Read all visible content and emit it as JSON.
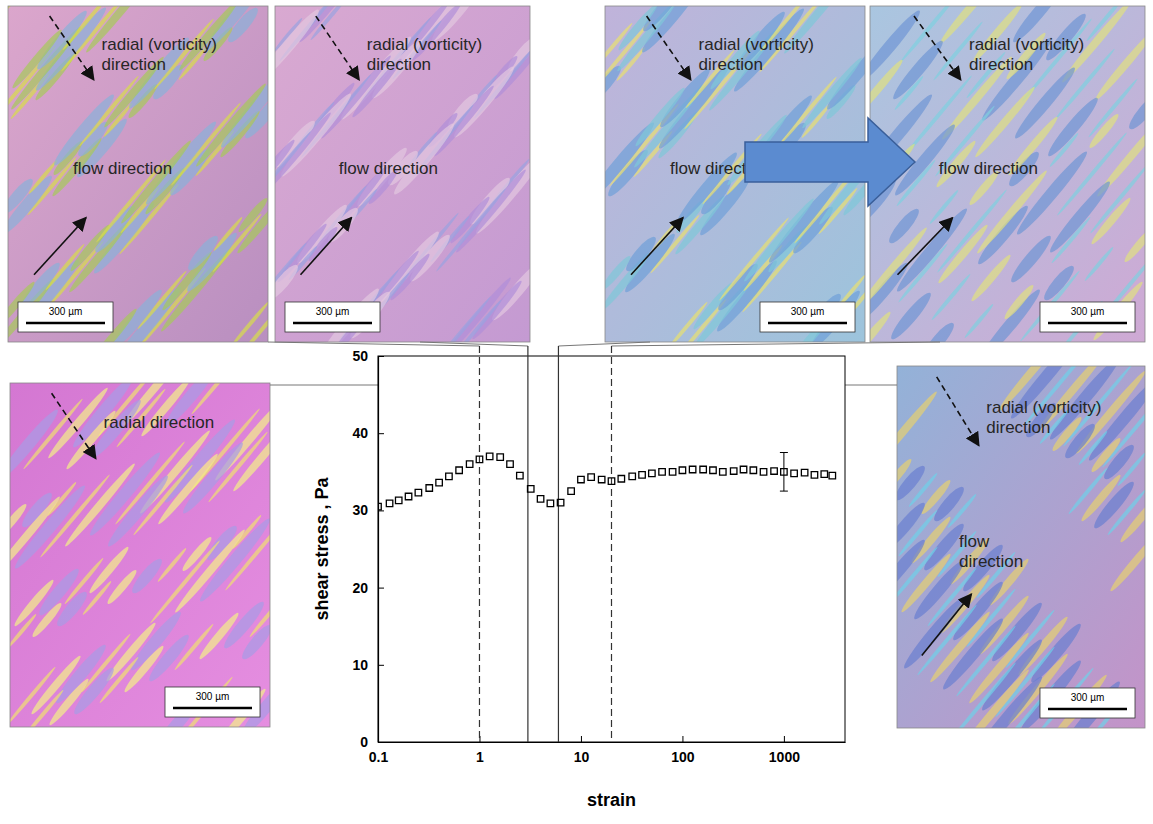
{
  "chart_data": {
    "type": "scatter",
    "x_label": "strain",
    "y_label": "shear stress , Pa",
    "log": "x",
    "xlim": [
      0.1,
      4000
    ],
    "xticks": [
      0.1,
      1,
      10,
      100,
      1000
    ],
    "ylim": [
      0,
      50
    ],
    "yticks": [
      0,
      10,
      20,
      30,
      40,
      50
    ],
    "x": [
      0.1,
      0.13,
      0.16,
      0.2,
      0.25,
      0.32,
      0.4,
      0.5,
      0.63,
      0.8,
      1,
      1.26,
      1.6,
      2,
      2.5,
      3.2,
      4,
      5,
      6.3,
      8,
      10,
      12.6,
      16,
      20,
      25,
      32,
      40,
      50,
      63,
      80,
      100,
      126,
      160,
      200,
      250,
      320,
      400,
      500,
      630,
      800,
      1000,
      1260,
      1600,
      2000,
      2500,
      3000
    ],
    "series": [
      {
        "marker": "square",
        "color": "#000000",
        "values": [
          30.5,
          30.9,
          31.3,
          31.8,
          32.3,
          32.9,
          33.6,
          34.4,
          35.2,
          36.0,
          36.6,
          37.0,
          36.9,
          36.0,
          34.5,
          32.8,
          31.5,
          30.9,
          31.0,
          32.5,
          34.0,
          34.3,
          34.0,
          33.8,
          34.1,
          34.4,
          34.6,
          34.8,
          35.0,
          35.0,
          35.2,
          35.3,
          35.3,
          35.2,
          35.0,
          35.1,
          35.3,
          35.2,
          35.0,
          35.1,
          35.0,
          34.8,
          34.9,
          34.6,
          34.7,
          34.5
        ]
      }
    ],
    "error_bars": [
      {
        "x": 1000,
        "y": 35,
        "error": 2.5
      }
    ],
    "vlines": [
      {
        "x": 1,
        "line_style": "dashed"
      },
      {
        "x": 3,
        "line_style": "solid"
      },
      {
        "x": 6,
        "line_style": "solid"
      },
      {
        "x": 20,
        "line_style": "dashed"
      }
    ]
  },
  "panels": [
    {
      "radial_label": "radial (vorticity) direction",
      "flow_label": "flow direction",
      "scale_bar": "300 µm"
    },
    {
      "radial_label": "radial (vorticity) direction",
      "flow_label": "flow direction",
      "scale_bar": "300 µm"
    },
    {
      "radial_label": "radial (vorticity) direction",
      "flow_label": "flow direction",
      "scale_bar": "300 µm"
    },
    {
      "radial_label": "radial (vorticity) direction",
      "flow_label": "flow direction",
      "scale_bar": "300 µm"
    },
    {
      "radial_label": "radial direction",
      "scale_bar": "300 µm"
    },
    {
      "radial_label": "radial (vorticity) direction",
      "flow_label": "flow direction",
      "scale_bar": "300 µm"
    }
  ]
}
